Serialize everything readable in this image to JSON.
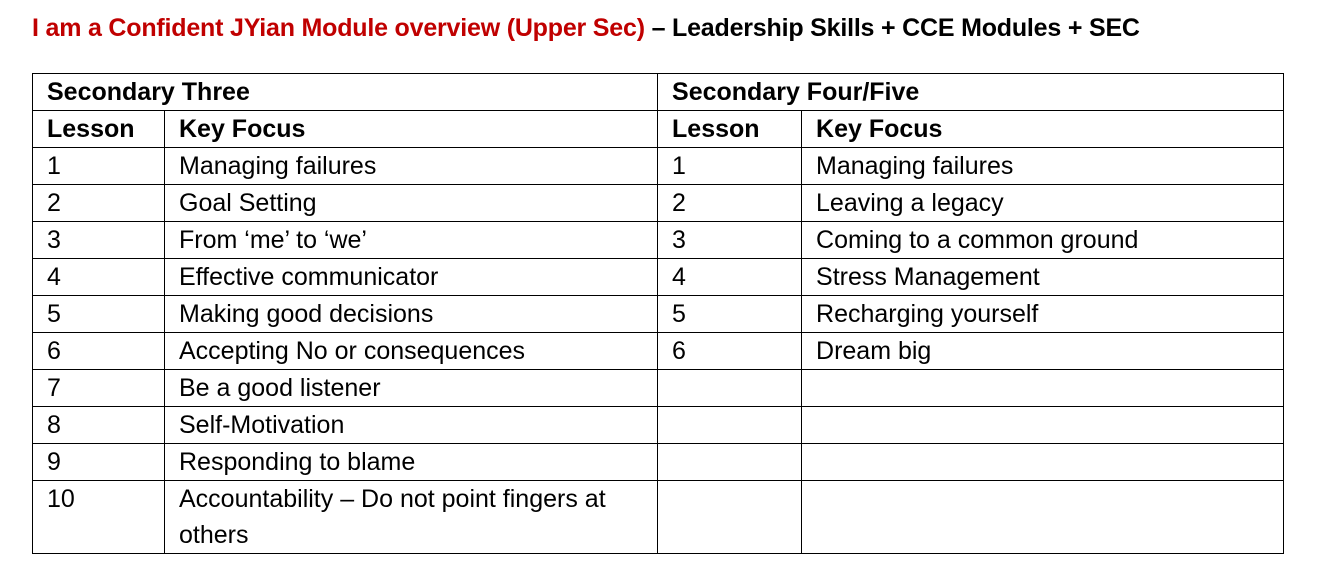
{
  "heading": {
    "red_part": "I am a Confident JYian Module overview (Upper Sec)",
    "black_part": " – Leadership Skills + CCE Modules + SEC"
  },
  "colors": {
    "title_red": "#c00000",
    "text": "#000000",
    "border": "#000000"
  },
  "table": {
    "sec3_header": "Secondary Three",
    "sec45_header": "Secondary Four/Five",
    "col_lesson": "Lesson",
    "col_focus": "Key Focus",
    "rows": [
      {
        "l3": "1",
        "f3": "Managing failures",
        "l4": "1",
        "f4": "Managing failures"
      },
      {
        "l3": "2",
        "f3": "Goal Setting",
        "l4": "2",
        "f4": "Leaving a legacy"
      },
      {
        "l3": "3",
        "f3": "From ‘me’ to ‘we’",
        "l4": "3",
        "f4": "Coming to a common ground"
      },
      {
        "l3": "4",
        "f3": "Effective communicator",
        "l4": "4",
        "f4": "Stress Management"
      },
      {
        "l3": "5",
        "f3": "Making good decisions",
        "l4": "5",
        "f4": "Recharging yourself"
      },
      {
        "l3": "6",
        "f3": "Accepting No or consequences",
        "l4": "6",
        "f4": "Dream big"
      },
      {
        "l3": "7",
        "f3": "Be a good listener",
        "l4": "",
        "f4": ""
      },
      {
        "l3": "8",
        "f3": "Self-Motivation",
        "l4": "",
        "f4": ""
      },
      {
        "l3": "9",
        "f3": "Responding to blame",
        "l4": "",
        "f4": ""
      },
      {
        "l3": "10",
        "f3": "Accountability – Do not point fingers at others",
        "l4": "",
        "f4": ""
      }
    ]
  }
}
